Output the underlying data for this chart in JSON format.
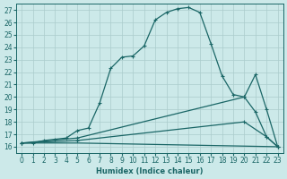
{
  "xlabel": "Humidex (Indice chaleur)",
  "bg_color": "#cce9e9",
  "grid_color": "#aacccc",
  "line_color": "#1a6666",
  "xlim": [
    -0.5,
    23.5
  ],
  "ylim": [
    15.5,
    27.5
  ],
  "xticks": [
    0,
    1,
    2,
    3,
    4,
    5,
    6,
    7,
    8,
    9,
    10,
    11,
    12,
    13,
    14,
    15,
    16,
    17,
    18,
    19,
    20,
    21,
    22,
    23
  ],
  "yticks": [
    16,
    17,
    18,
    19,
    20,
    21,
    22,
    23,
    24,
    25,
    26,
    27
  ],
  "curve1_x": [
    0,
    1,
    2,
    3,
    4,
    5,
    6,
    7,
    8,
    9,
    10,
    11,
    12,
    13,
    14,
    15,
    16,
    17,
    18,
    19,
    20,
    21,
    22,
    23
  ],
  "curve1_y": [
    16.3,
    16.3,
    16.5,
    16.6,
    16.7,
    17.3,
    17.5,
    19.5,
    22.3,
    23.2,
    23.3,
    24.1,
    26.2,
    26.8,
    27.1,
    27.2,
    26.8,
    24.3,
    21.7,
    20.2,
    20.0,
    18.8,
    16.8,
    16.0
  ],
  "curve2_x": [
    0,
    5,
    20,
    21,
    22,
    23
  ],
  "curve2_y": [
    16.3,
    16.7,
    20.0,
    21.8,
    19.0,
    16.0
  ],
  "curve3_x": [
    0,
    5,
    20,
    22,
    23
  ],
  "curve3_y": [
    16.3,
    16.5,
    18.0,
    16.8,
    16.0
  ],
  "curve4_x": [
    0,
    5,
    23
  ],
  "curve4_y": [
    16.3,
    16.3,
    16.0
  ]
}
